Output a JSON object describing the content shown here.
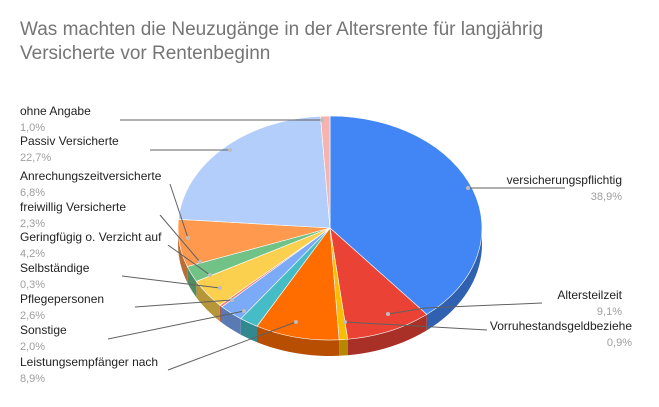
{
  "chart_data": {
    "type": "pie",
    "title": "Was machten die Neuzugänge in der Altersrente für langjährig Versicherte vor Rentenbeginn",
    "style": "3d",
    "legend": "labels-with-leaders",
    "slices": [
      {
        "label": "versicherungspflichtig",
        "value_text": "38,9%",
        "value": 38.9,
        "color": "#4285f4"
      },
      {
        "label": "Altersteilzeit",
        "value_text": "9,1%",
        "value": 9.1,
        "color": "#ea4335"
      },
      {
        "label": "Vorruhestandsgeldbeziehe",
        "value_text": "0,9%",
        "value": 0.9,
        "color": "#fbbc04"
      },
      {
        "label": "Leistungsempfänger nach",
        "value_text": "8,9%",
        "value": 8.9,
        "color": "#ff6d01"
      },
      {
        "label": "Sonstige",
        "value_text": "2,0%",
        "value": 2.0,
        "color": "#46bdc6"
      },
      {
        "label": "Pflegepersonen",
        "value_text": "2,6%",
        "value": 2.6,
        "color": "#7baaf7"
      },
      {
        "label": "Selbständige",
        "value_text": "0,3%",
        "value": 0.3,
        "color": "#f07b72"
      },
      {
        "label": "Geringfügig o. Verzicht auf",
        "value_text": "4,2%",
        "value": 4.2,
        "color": "#fcd04f"
      },
      {
        "label": "freiwillig Versicherte",
        "value_text": "2,3%",
        "value": 2.3,
        "color": "#71c287"
      },
      {
        "label": "Anrechungszeitversicherte",
        "value_text": "6,8%",
        "value": 6.8,
        "color": "#ff994d"
      },
      {
        "label": "Passiv Versicherte",
        "value_text": "22,7%",
        "value": 22.7,
        "color": "#b3cefb"
      },
      {
        "label": "ohne Angabe",
        "value_text": "1,0%",
        "value": 1.0,
        "color": "#f7b4ae"
      }
    ]
  }
}
